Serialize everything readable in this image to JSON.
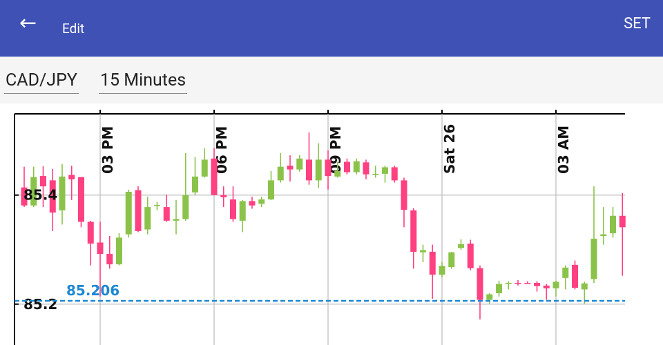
{
  "header": {
    "back_icon": "←",
    "title": "Edit",
    "action": "SET"
  },
  "controls": {
    "symbol": "CAD/JPY",
    "interval": "15 Minutes"
  },
  "chart_data": {
    "type": "candlestick",
    "categories": [
      null,
      null,
      null,
      null,
      null,
      null,
      null,
      null,
      "03 PM",
      null,
      null,
      null,
      null,
      null,
      null,
      null,
      null,
      null,
      null,
      null,
      "06 PM",
      null,
      null,
      null,
      null,
      null,
      null,
      null,
      null,
      null,
      null,
      null,
      "09 PM",
      null,
      null,
      null,
      null,
      null,
      null,
      null,
      null,
      null,
      null,
      null,
      "Sat 26",
      null,
      null,
      null,
      null,
      null,
      null,
      null,
      null,
      null,
      null,
      null,
      "03 AM",
      null,
      null,
      null,
      null,
      null,
      null,
      null
    ],
    "open": [
      85.414,
      85.381,
      85.435,
      85.427,
      85.372,
      85.437,
      85.433,
      85.351,
      85.313,
      85.292,
      85.273,
      85.328,
      85.409,
      85.337,
      85.38,
      85.378,
      85.353,
      85.356,
      85.405,
      85.434,
      85.467,
      85.4,
      85.392,
      85.353,
      85.389,
      85.384,
      85.392,
      85.427,
      85.454,
      85.447,
      85.465,
      85.427,
      85.465,
      85.434,
      85.461,
      85.442,
      85.46,
      85.437,
      85.439,
      85.451,
      85.427,
      85.372,
      85.295,
      85.296,
      85.254,
      85.268,
      85.303,
      85.311,
      85.266,
      85.208,
      85.22,
      85.237,
      85.239,
      85.239,
      85.239,
      85.234,
      85.229,
      85.248,
      85.272,
      85.227,
      85.246,
      85.325,
      85.33,
      85.362
    ],
    "high": [
      85.452,
      85.452,
      85.453,
      85.448,
      85.457,
      85.454,
      85.433,
      85.353,
      85.351,
      85.325,
      85.33,
      85.41,
      85.416,
      85.397,
      85.387,
      85.401,
      85.391,
      85.477,
      85.47,
      85.486,
      85.486,
      85.416,
      85.416,
      85.391,
      85.397,
      85.397,
      85.444,
      85.477,
      85.473,
      85.473,
      85.515,
      85.495,
      85.482,
      85.461,
      85.467,
      85.467,
      85.465,
      85.454,
      85.454,
      85.454,
      85.432,
      85.376,
      85.309,
      85.309,
      85.277,
      85.296,
      85.319,
      85.318,
      85.271,
      85.22,
      85.243,
      85.242,
      85.244,
      85.242,
      85.242,
      85.237,
      85.243,
      85.271,
      85.28,
      85.241,
      85.416,
      85.378,
      85.378,
      85.404
    ],
    "low": [
      85.378,
      85.378,
      85.378,
      85.334,
      85.346,
      85.391,
      85.341,
      85.271,
      85.214,
      85.265,
      85.271,
      85.322,
      85.332,
      85.328,
      85.372,
      85.351,
      85.328,
      85.353,
      85.4,
      85.432,
      85.4,
      85.378,
      85.351,
      85.332,
      85.375,
      85.378,
      85.391,
      85.423,
      85.425,
      85.443,
      85.419,
      85.413,
      85.41,
      85.432,
      85.438,
      85.438,
      85.429,
      85.432,
      85.423,
      85.423,
      85.341,
      85.265,
      85.277,
      85.21,
      85.249,
      85.265,
      85.3,
      85.262,
      85.172,
      85.201,
      85.214,
      85.227,
      85.234,
      85.237,
      85.223,
      85.208,
      85.214,
      85.227,
      85.227,
      85.201,
      85.239,
      85.309,
      85.322,
      85.252
    ],
    "close": [
      85.381,
      85.433,
      85.416,
      85.368,
      85.434,
      85.429,
      85.351,
      85.311,
      85.292,
      85.273,
      85.322,
      85.406,
      85.334,
      85.378,
      85.382,
      85.353,
      85.356,
      85.4,
      85.434,
      85.465,
      85.4,
      85.396,
      85.356,
      85.389,
      85.381,
      85.392,
      85.427,
      85.452,
      85.447,
      85.467,
      85.427,
      85.465,
      85.435,
      85.444,
      85.442,
      85.462,
      85.438,
      85.439,
      85.451,
      85.427,
      85.373,
      85.296,
      85.299,
      85.254,
      85.27,
      85.295,
      85.31,
      85.266,
      85.208,
      85.218,
      85.237,
      85.239,
      85.237,
      85.237,
      85.233,
      85.229,
      85.241,
      85.267,
      85.23,
      85.238,
      85.32,
      85.328,
      85.362,
      85.341
    ],
    "up_color": "#8bc34a",
    "down_color": "#ff4081",
    "ylim": [
      85.144,
      85.549
    ],
    "yticks": [
      85.2,
      85.4
    ],
    "grid": true,
    "alert_line": 85.206,
    "alert_color": "#1e88d2"
  }
}
